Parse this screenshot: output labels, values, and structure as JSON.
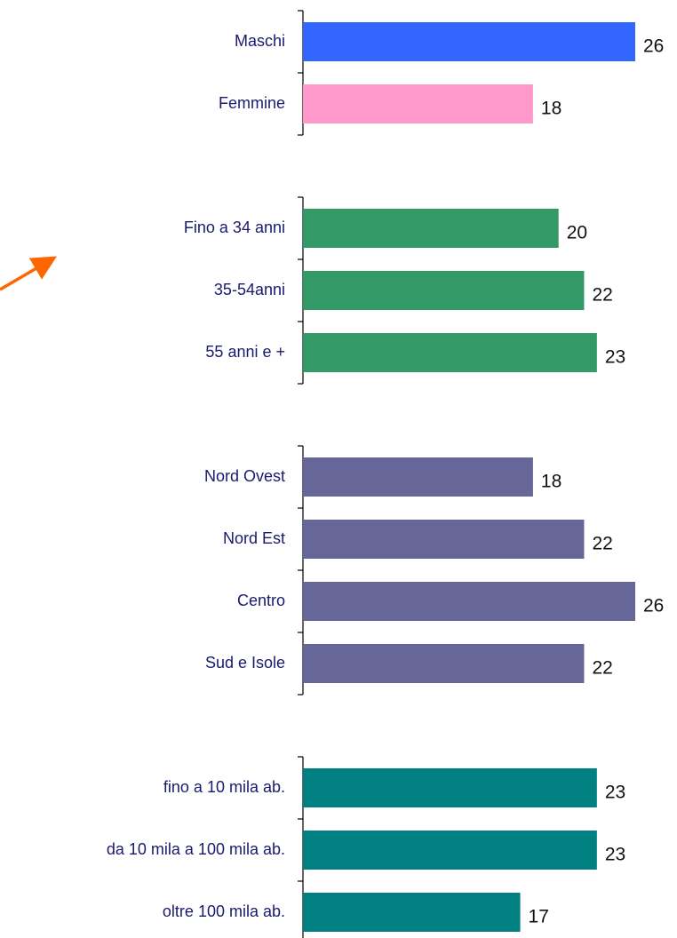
{
  "chart_data": [
    {
      "type": "bar",
      "orientation": "horizontal",
      "categories": [
        "Maschi",
        "Femmine"
      ],
      "values": [
        26,
        18
      ],
      "colors": [
        "#3366ff",
        "#ff99cc"
      ]
    },
    {
      "type": "bar",
      "orientation": "horizontal",
      "categories": [
        "Fino a 34 anni",
        "35-54anni",
        "55 anni e +"
      ],
      "values": [
        20,
        22,
        23
      ],
      "colors": [
        "#339966",
        "#339966",
        "#339966"
      ]
    },
    {
      "type": "bar",
      "orientation": "horizontal",
      "categories": [
        "Nord Ovest",
        "Nord Est",
        "Centro",
        "Sud e Isole"
      ],
      "values": [
        18,
        22,
        26,
        22
      ],
      "colors": [
        "#666699",
        "#666699",
        "#666699",
        "#666699"
      ]
    },
    {
      "type": "bar",
      "orientation": "horizontal",
      "categories": [
        "fino a 10 mila ab.",
        "da 10 mila a 100 mila ab.",
        "oltre 100 mila ab."
      ],
      "values": [
        23,
        23,
        17
      ],
      "colors": [
        "#008080",
        "#008080",
        "#008080"
      ]
    }
  ]
}
